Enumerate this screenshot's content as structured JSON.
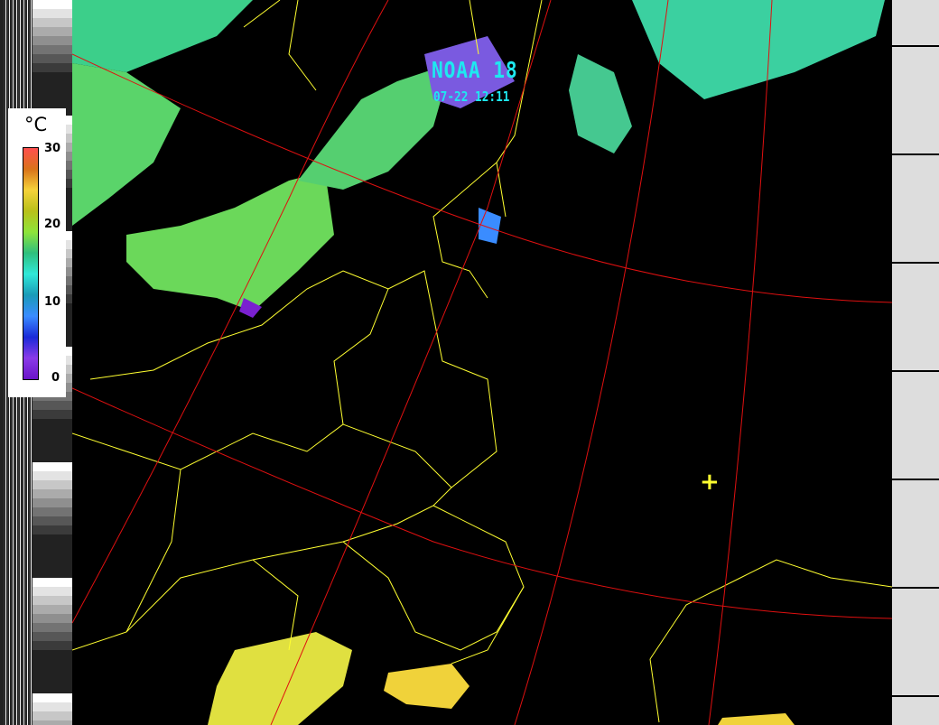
{
  "title": "NOAA 18",
  "timestamp": "07-22 12:11",
  "legend": {
    "unit": "°C",
    "ticks": [
      "30",
      "20",
      "10",
      "0"
    ],
    "range": [
      0,
      30
    ],
    "colors": [
      "#ff4f4f",
      "#d9731a",
      "#f5d23a",
      "#b8c01a",
      "#8ee43a",
      "#2fbf7e",
      "#30e8d8",
      "#1a9ab8",
      "#3a8cff",
      "#1a2ad8",
      "#8a3ae8",
      "#6a14c8"
    ]
  },
  "map": {
    "background": "#000000",
    "border_color": "#ffff30",
    "graticule_color": "#e01010",
    "coast_color": "#a0f0a0",
    "marker_color": "#ffff30"
  }
}
